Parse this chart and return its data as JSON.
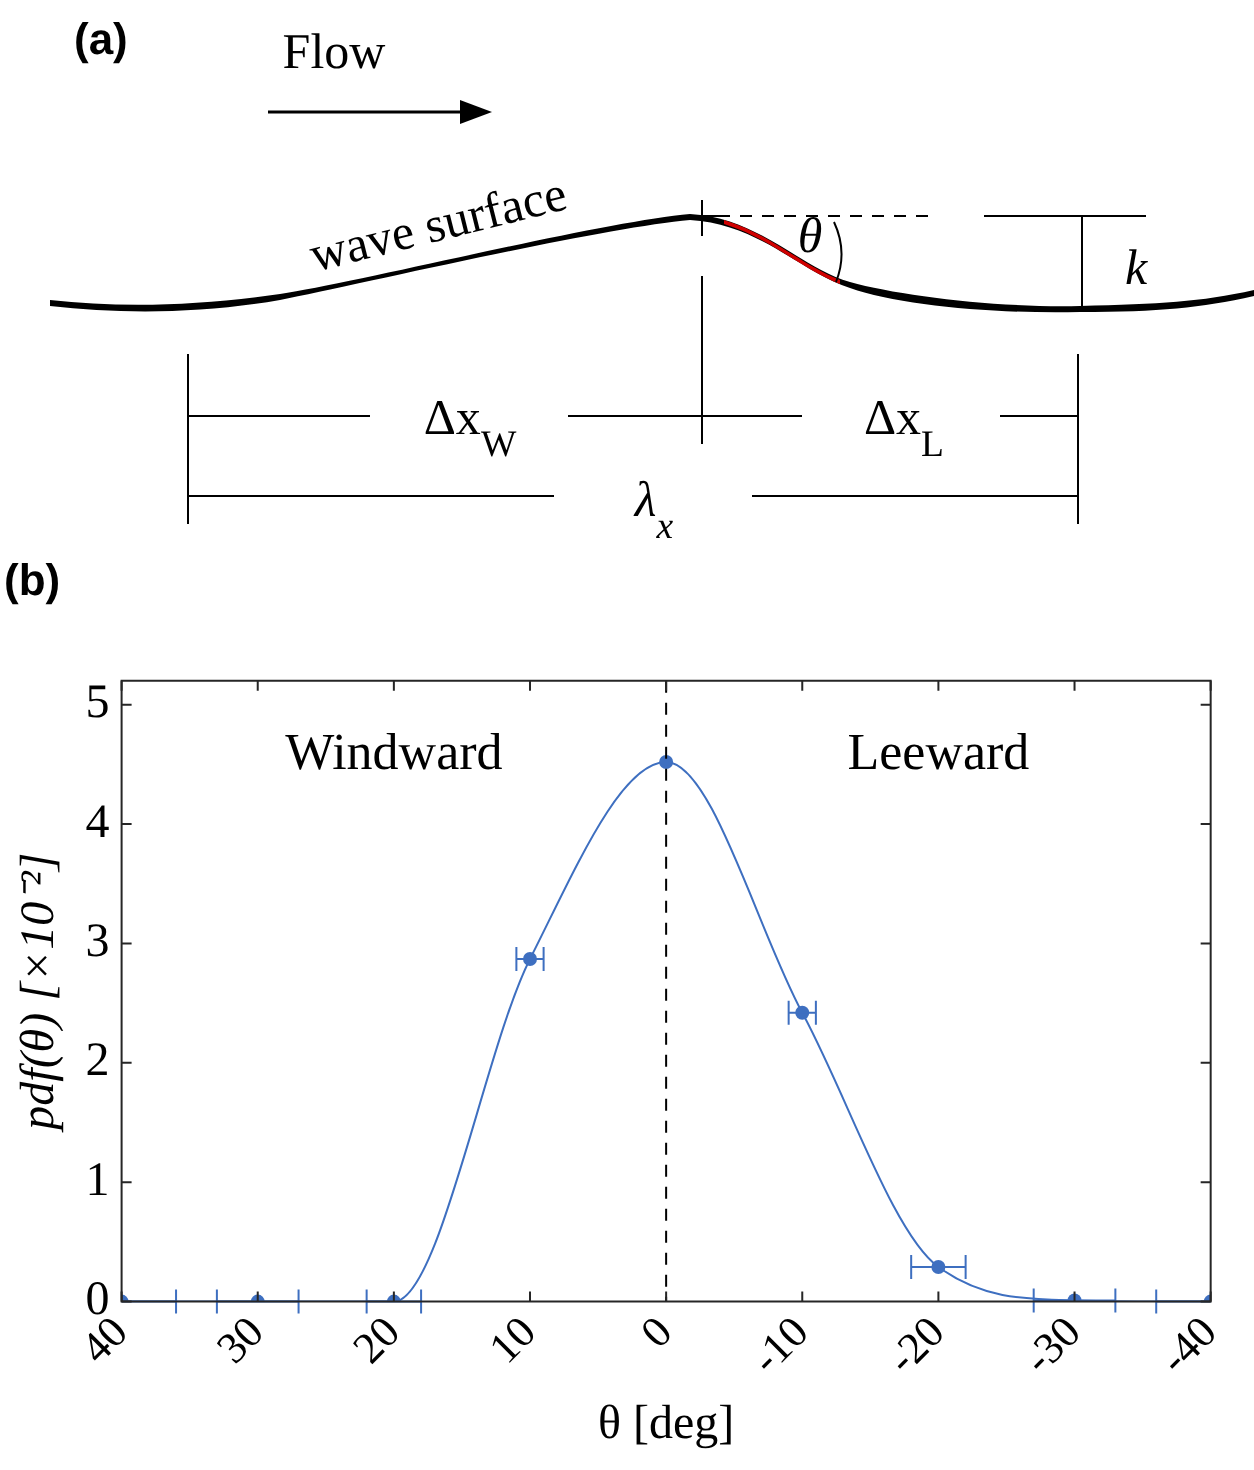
{
  "chart_data": [
    {
      "type": "other",
      "title": "(a)",
      "annotations": [
        "Flow",
        "wave surface",
        "θ",
        "k",
        "Δx$_{W}$",
        "Δx$_{L}$",
        "λ$_{x}$"
      ]
    },
    {
      "type": "line",
      "title": "(b)",
      "xlabel": "θ [deg]",
      "ylabel": "pdf(θ) [×10⁻²]",
      "x": [
        40,
        30,
        20,
        10,
        0,
        -10,
        -20,
        -30,
        -40
      ],
      "series": [
        {
          "color": "#3e6fc0",
          "values": [
            0,
            0,
            0,
            2.87,
            4.52,
            2.42,
            0.29,
            0.01,
            0
          ],
          "xerrors": [
            [
              36,
              40
            ],
            3,
            2,
            1,
            null,
            1,
            2,
            3,
            [
              -40,
              -36
            ]
          ]
        }
      ],
      "xlim": [
        40,
        -40
      ],
      "xticks": [
        40,
        30,
        20,
        10,
        0,
        -10,
        -20,
        -30,
        -40
      ],
      "ylim": [
        0,
        5.2
      ],
      "yticks": [
        0,
        1,
        2,
        3,
        4,
        5
      ],
      "ref_lines": [
        {
          "axis": "x",
          "value": 0,
          "color": "#000000",
          "line_style": "dashed"
        }
      ],
      "annotations": [
        "Windward",
        "Leeward"
      ],
      "marker": "circle",
      "grid": false,
      "legend": false
    }
  ]
}
